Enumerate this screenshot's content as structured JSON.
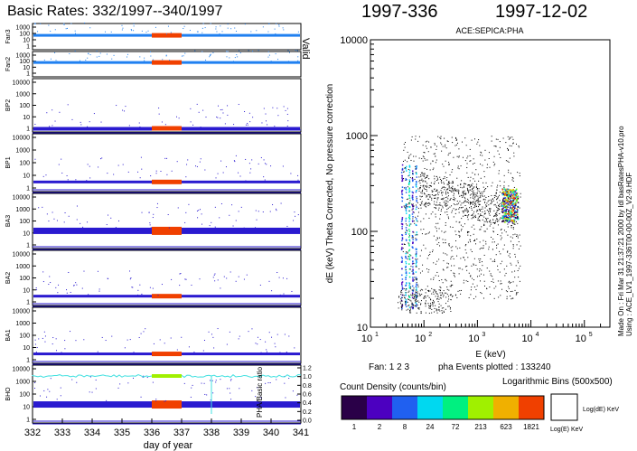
{
  "left": {
    "title": "Basic Rates: 332/1997--340/1997",
    "xlabel": "day of year",
    "x_ticks": [
      "332",
      "333",
      "334",
      "335",
      "336",
      "337",
      "338",
      "339",
      "340",
      "341"
    ],
    "valid_label": "Valid",
    "right_axis_label": "PHA/Basic ratio",
    "right_axis_ticks": [
      "1.2",
      "1.0",
      "0.8",
      "0.6",
      "0.4",
      "0.2",
      "0.0"
    ],
    "panels": [
      {
        "name": "Fan3",
        "ticks": [
          "1000",
          "100",
          "10",
          "1"
        ]
      },
      {
        "name": "Fan2",
        "ticks": [
          "1000",
          "100",
          "10",
          "1"
        ]
      },
      {
        "name": "BP2",
        "ticks": [
          "10000",
          "1000",
          "100",
          "10",
          "1"
        ]
      },
      {
        "name": "BP1",
        "ticks": [
          "10000",
          "1000",
          "100",
          "10",
          "1"
        ]
      },
      {
        "name": "BA3",
        "ticks": [
          "10000",
          "1000",
          "100",
          "10",
          "1"
        ]
      },
      {
        "name": "BA2",
        "ticks": [
          "10000",
          "1000",
          "100",
          "10",
          "1"
        ]
      },
      {
        "name": "BA1",
        "ticks": [
          "10000",
          "1000",
          "100",
          "10",
          "1"
        ]
      },
      {
        "name": "BHO",
        "ticks": [
          "10000",
          "1000",
          "100",
          "10",
          "1"
        ]
      }
    ]
  },
  "right": {
    "doy_label": "1997-336",
    "date_label": "1997-12-02",
    "plot_title": "ACE:SEPICA:PHA",
    "ylabel": "dE (keV) Theta Corrected, No pressure correction",
    "xlabel": "E (keV)",
    "x_ticks": [
      {
        "base": "10",
        "exp": "1"
      },
      {
        "base": "10",
        "exp": "2"
      },
      {
        "base": "10",
        "exp": "3"
      },
      {
        "base": "10",
        "exp": "4"
      },
      {
        "base": "10",
        "exp": "5"
      }
    ],
    "y_ticks": [
      "10000",
      "1000",
      "100",
      "10"
    ],
    "fan_label": "Fan: 1 2 3",
    "events_label": "pha Events plotted : 133240",
    "side_note_1": "Made On : Fri Mar 31 21:37:21 2000  by Idl basRatesPHA-v10.pro",
    "side_note_2": "Using : ACE_LV1_1997-336T00-00-00Z_V2-9.HDF",
    "density_title": "Count Density (counts/bin)",
    "bins_title": "Logarithmic Bins (500x500)",
    "density_labels": [
      "1",
      "2",
      "8",
      "24",
      "72",
      "213",
      "623",
      "1821"
    ],
    "density_colors": [
      "#2a0048",
      "#4c00c0",
      "#2060f0",
      "#00d8f0",
      "#00f080",
      "#a0f000",
      "#f0b000",
      "#f04000"
    ],
    "bin_label_y": "Log(dE) KeV",
    "bin_label_x": "Log(E) KeV"
  },
  "chart_data": [
    {
      "type": "scatter",
      "title": "Basic Rates: 332/1997--340/1997",
      "xlabel": "day of year",
      "xlim": [
        332,
        341
      ],
      "series": [
        {
          "name": "Fan3",
          "level": 50
        },
        {
          "name": "Fan2",
          "level": 60
        },
        {
          "name": "BP2",
          "level": 1
        },
        {
          "name": "BP1",
          "level": 3
        },
        {
          "name": "BA3",
          "level": 15
        },
        {
          "name": "BA2",
          "level": 3
        },
        {
          "name": "BA1",
          "level": 3
        },
        {
          "name": "BHO",
          "level": 15
        }
      ],
      "highlight_x_range": [
        336,
        337
      ],
      "colors": {
        "data": "#2a1ad0",
        "highlight": "#f04000",
        "ratio": "#40e0e0",
        "fan": "#2080f0"
      }
    },
    {
      "type": "heatmap",
      "title": "ACE:SEPICA:PHA",
      "xlabel": "E (keV)",
      "ylabel": "dE (keV) Theta Corrected, No pressure correction",
      "xlim": [
        10,
        300000
      ],
      "ylim": [
        10,
        10000
      ],
      "log_x": true,
      "log_y": true,
      "events": 133240
    }
  ]
}
